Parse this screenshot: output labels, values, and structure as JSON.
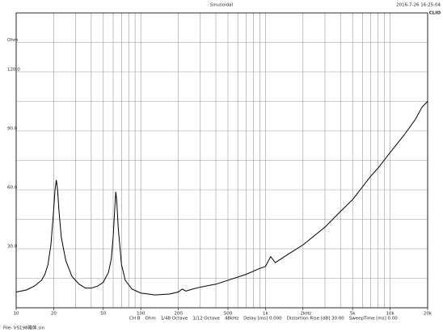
{
  "chart_data": {
    "type": "line",
    "title": "Sinusoidal",
    "timestamp": "2016-7-26 16:25:04",
    "brand": "CLIO",
    "x_unit": "Hz",
    "y_unit": "Ohm",
    "log_x": true,
    "grid": true,
    "xlim": [
      10,
      20000
    ],
    "ylim": [
      0,
      150
    ],
    "xticks": [
      10,
      20,
      50,
      100,
      200,
      500,
      {
        "value": 1000,
        "label": "1k"
      },
      {
        "value": 2000,
        "label": "2k"
      },
      {
        "value": 5000,
        "label": "5k"
      },
      {
        "value": 10000,
        "label": "10k"
      },
      {
        "value": 20000,
        "label": "20k"
      }
    ],
    "xgrid": [
      10,
      20,
      30,
      40,
      50,
      60,
      70,
      80,
      90,
      100,
      200,
      300,
      400,
      500,
      600,
      700,
      800,
      900,
      1000,
      2000,
      3000,
      4000,
      5000,
      6000,
      7000,
      8000,
      9000,
      10000,
      20000
    ],
    "yticks": [
      {
        "value": 30,
        "label": "30.0"
      },
      {
        "value": 60,
        "label": "60.0"
      },
      {
        "value": 90,
        "label": "90.0"
      },
      {
        "value": 120,
        "label": "120.0"
      }
    ],
    "ygrid": [
      0,
      15,
      30,
      45,
      60,
      75,
      90,
      105,
      120,
      135,
      150
    ],
    "series": [
      {
        "color": "#000000",
        "x": [
          10,
          12,
          14,
          16,
          17,
          18,
          19,
          20,
          20.5,
          21,
          21.5,
          22,
          23,
          25,
          28,
          32,
          36,
          40,
          45,
          50,
          55,
          58,
          60,
          62,
          63,
          64,
          66,
          70,
          75,
          85,
          100,
          130,
          170,
          200,
          215,
          230,
          260,
          300,
          400,
          500,
          700,
          900,
          1000,
          1100,
          1200,
          1500,
          2000,
          3000,
          4000,
          5000,
          7000,
          8000,
          10000,
          13000,
          16000,
          18000,
          20000
        ],
        "values": [
          8,
          9,
          11,
          14,
          17,
          22,
          32,
          50,
          60,
          65,
          60,
          50,
          36,
          24,
          16,
          12,
          10,
          10,
          11,
          13,
          18,
          25,
          36,
          52,
          59,
          55,
          40,
          22,
          14,
          9.5,
          7.5,
          6.5,
          7,
          8,
          9.5,
          8.5,
          9.5,
          10.5,
          12,
          14,
          17,
          20,
          21,
          26,
          23,
          27,
          32,
          41,
          49,
          55,
          67,
          71,
          79,
          88,
          96,
          102,
          105
        ]
      }
    ],
    "footer": [
      "CH B",
      "Ohm",
      "1/48 Octave",
      "1/12 Octave",
      "48kHz",
      "Delay [ms] 0.000",
      "Distortion Rise [dB] 30.00",
      "SweepTime [ms] 0.00"
    ],
    "file": "File: VS198箱体.sin"
  }
}
